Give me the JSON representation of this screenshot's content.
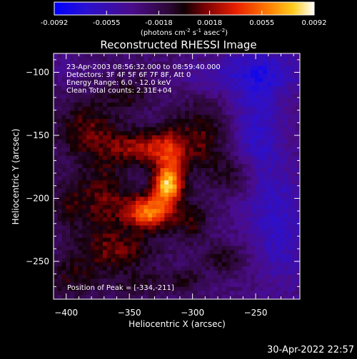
{
  "chart_data": {
    "type": "heatmap",
    "title": "Reconstructed RHESSI Image",
    "xlabel": "Heliocentric X (arcsec)",
    "ylabel": "Heliocentric Y (arcsec)",
    "xlim": [
      -410,
      -215
    ],
    "ylim": [
      -280,
      -85
    ],
    "x_ticks": [
      -400,
      -350,
      -300,
      -250
    ],
    "y_ticks": [
      -100,
      -150,
      -200,
      -250
    ],
    "colorbar": {
      "range": [
        -0.0092,
        0.0092
      ],
      "ticks": [
        -0.0092,
        -0.0055,
        -0.0018,
        0.0018,
        0.0055,
        0.0092
      ],
      "tick_labels": [
        "-0.0092",
        "-0.0055",
        "-0.0018",
        "0.0018",
        "0.0055",
        "0.0092"
      ],
      "units_prefix": "(photons cm",
      "units_sup1": "-2",
      "units_mid": " s",
      "units_sup2": "-1",
      "units_mid2": " asec",
      "units_sup3": "-2",
      "units_suffix": ")"
    },
    "info_lines": [
      "23-Apr-2003 08:56:32.000 to 08:59:40.000",
      "Detectors: 3F 4F 5F 6F 7F 8F, Att 0",
      "Energy Range: 6.0 - 12.0 keV",
      "Clean     Total counts: 2.31E+04"
    ],
    "peak_label": "Position of Peak = [-334,-211]",
    "peak": [
      -334,
      -211
    ],
    "features": [
      {
        "x": -334,
        "y": -211,
        "sx": 13,
        "sy": 10,
        "amp": 0.0085
      },
      {
        "x": -320,
        "y": -190,
        "sx": 8,
        "sy": 9,
        "amp": 0.0075
      },
      {
        "x": -337,
        "y": -160,
        "sx": 20,
        "sy": 10,
        "amp": 0.0052
      },
      {
        "x": -318,
        "y": -175,
        "sx": 8,
        "sy": 18,
        "amp": 0.0042
      },
      {
        "x": -370,
        "y": -200,
        "sx": 14,
        "sy": 22,
        "amp": 0.0038
      },
      {
        "x": -358,
        "y": -242,
        "sx": 22,
        "sy": 11,
        "amp": 0.0036
      },
      {
        "x": -383,
        "y": -145,
        "sx": 17,
        "sy": 16,
        "amp": 0.0036
      },
      {
        "x": -292,
        "y": -150,
        "sx": 17,
        "sy": 22,
        "amp": 0.0034
      },
      {
        "x": -300,
        "y": -218,
        "sx": 10,
        "sy": 12,
        "amp": 0.003
      },
      {
        "x": -265,
        "y": -182,
        "sx": 14,
        "sy": 12,
        "amp": 0.0028
      },
      {
        "x": -275,
        "y": -248,
        "sx": 12,
        "sy": 9,
        "amp": 0.0026
      },
      {
        "x": -395,
        "y": -262,
        "sx": 14,
        "sy": 12,
        "amp": 0.0026
      },
      {
        "x": -350,
        "y": -118,
        "sx": 13,
        "sy": 10,
        "amp": 0.0024
      },
      {
        "x": -342,
        "y": -268,
        "sx": 18,
        "sy": 8,
        "amp": 0.002
      },
      {
        "x": -305,
        "y": -265,
        "sx": 10,
        "sy": 7,
        "amp": 0.0022
      },
      {
        "x": -398,
        "y": -205,
        "sx": 9,
        "sy": 14,
        "amp": 0.0026
      },
      {
        "x": -250,
        "y": -150,
        "sx": 15,
        "sy": 40,
        "amp": -0.0034
      },
      {
        "x": -230,
        "y": -225,
        "sx": 14,
        "sy": 30,
        "amp": -0.003
      },
      {
        "x": -245,
        "y": -100,
        "sx": 25,
        "sy": 12,
        "amp": -0.003
      },
      {
        "x": -290,
        "y": -105,
        "sx": 15,
        "sy": 10,
        "amp": -0.0016
      },
      {
        "x": -400,
        "y": -95,
        "sx": 10,
        "sy": 10,
        "amp": -0.0014
      }
    ]
  },
  "footer": {
    "timestamp": "30-Apr-2022 22:57"
  }
}
